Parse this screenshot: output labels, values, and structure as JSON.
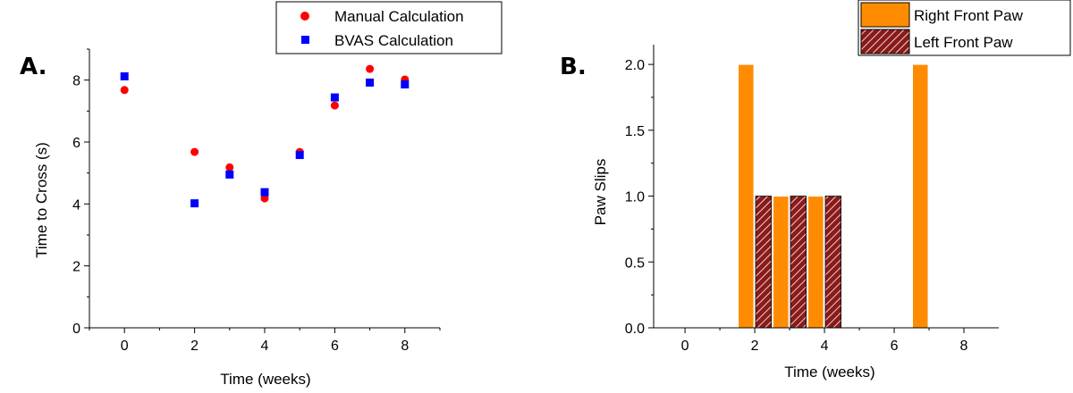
{
  "chart_data": [
    {
      "type": "scatter",
      "panel_label": "A.",
      "xlabel": "Time (weeks)",
      "ylabel": "Time to Cross (s)",
      "xlim": [
        -1,
        9
      ],
      "ylim": [
        0,
        9
      ],
      "x_ticks": [
        0,
        2,
        4,
        6,
        8
      ],
      "y_ticks": [
        0,
        2,
        4,
        6,
        8
      ],
      "legend_position": "top-right",
      "series": [
        {
          "name": "Manual Calculation",
          "marker": "circle",
          "color": "#ff0000",
          "x": [
            0,
            2,
            3,
            4,
            5,
            6,
            7,
            8
          ],
          "y": [
            7.68,
            5.68,
            5.18,
            4.18,
            5.68,
            7.18,
            8.36,
            8.02
          ]
        },
        {
          "name": "BVAS Calculation",
          "marker": "square",
          "color": "#0000ff",
          "x": [
            0,
            2,
            3,
            4,
            5,
            6,
            7,
            8
          ],
          "y": [
            8.12,
            4.02,
            4.95,
            4.38,
            5.58,
            7.44,
            7.92,
            7.86
          ]
        }
      ]
    },
    {
      "type": "bar",
      "panel_label": "B.",
      "xlabel": "Time (weeks)",
      "ylabel": "Paw Slips",
      "xlim": [
        -0.9,
        9
      ],
      "ylim": [
        0,
        2.15
      ],
      "x_ticks": [
        0,
        2,
        4,
        6,
        8
      ],
      "y_ticks": [
        0.0,
        0.5,
        1.0,
        1.5,
        2.0
      ],
      "y_tick_labels": [
        "0.0",
        "0.5",
        "1.0",
        "1.5",
        "2.0"
      ],
      "legend_position": "top-right",
      "bar_width": 0.45,
      "series": [
        {
          "name": "Right Front Paw",
          "color": "#ff8c00",
          "pattern": "solid",
          "x": [
            1.75,
            2.75,
            3.75,
            6.75
          ],
          "y": [
            2,
            1,
            1,
            2
          ]
        },
        {
          "name": "Left Front Paw",
          "color": "#8b1a1a",
          "pattern": "hatched",
          "x": [
            2.25,
            3.25,
            4.25
          ],
          "y": [
            1,
            1,
            1
          ]
        }
      ]
    }
  ]
}
